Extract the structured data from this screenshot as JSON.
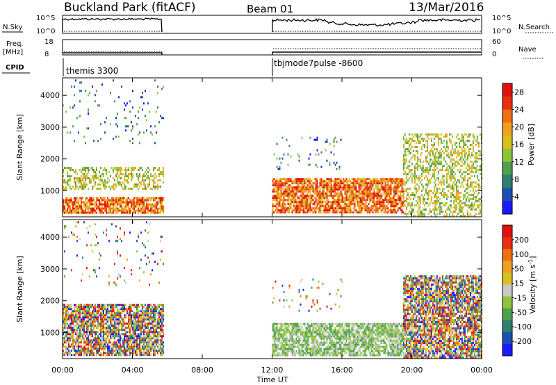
{
  "header": {
    "station": "Buckland Park (fitACF)",
    "beam": "Beam 01",
    "date": "13/Mar/2016"
  },
  "status_panels": {
    "left_labels": {
      "nsky": "N.Sky",
      "freq": "Freq.",
      "freq_unit": "[MHz]",
      "cpid": "CPID"
    },
    "right_labels": {
      "nsearch": "N.Search",
      "nave": "Nave"
    },
    "noise_ticks_left": [
      "10^5",
      "10^0"
    ],
    "noise_ticks_right": [
      "10^5",
      "10^0"
    ],
    "freq_ticks": [
      "18",
      "8"
    ],
    "nave_ticks": [
      "60",
      "0"
    ],
    "cpid_labels": [
      "themis 3300",
      "tbjmode7pulse -8600"
    ]
  },
  "chart_data": [
    {
      "type": "heatmap",
      "title": "",
      "xlabel": "Time UT",
      "ylabel": "Slant Range [km]",
      "x_tick_labels": [
        "00:00",
        "04:00",
        "08:00",
        "12:00",
        "16:00",
        "20:00",
        "00:00"
      ],
      "y_tick_labels": [
        "1000",
        "2000",
        "3000",
        "4000"
      ],
      "xlim_hours": [
        0,
        24
      ],
      "ylim_km": [
        180,
        4550
      ],
      "colorbar": {
        "label": "Power [dB]",
        "ticks": [
          "4",
          "8",
          "12",
          "16",
          "20",
          "24",
          "28"
        ],
        "range": [
          0,
          30
        ],
        "colors": [
          "#1a1aff",
          "#1d4fb0",
          "#2f7f6f",
          "#4fa04f",
          "#8fc43a",
          "#d8c020",
          "#f0a020",
          "#f07010",
          "#e83010",
          "#e01010"
        ]
      },
      "gaps_hours": [
        [
          5.75,
          12.0
        ]
      ],
      "echo_regions": [
        {
          "t": [
            0.0,
            5.75
          ],
          "r": [
            280,
            800
          ],
          "level": "strong"
        },
        {
          "t": [
            0.0,
            5.75
          ],
          "r": [
            1050,
            1750
          ],
          "level": "moderate"
        },
        {
          "t": [
            0.0,
            5.75
          ],
          "r": [
            2500,
            4500
          ],
          "level": "sparse"
        },
        {
          "t": [
            12.0,
            19.5
          ],
          "r": [
            300,
            1400
          ],
          "level": "strong"
        },
        {
          "t": [
            12.0,
            16.0
          ],
          "r": [
            1700,
            2700
          ],
          "level": "sparse"
        },
        {
          "t": [
            19.5,
            24.0
          ],
          "r": [
            200,
            2800
          ],
          "level": "moderate"
        }
      ]
    },
    {
      "type": "heatmap",
      "title": "",
      "xlabel": "Time UT",
      "ylabel": "Slant Range [km]",
      "x_tick_labels": [
        "00:00",
        "04:00",
        "08:00",
        "12:00",
        "16:00",
        "20:00",
        "00:00"
      ],
      "y_tick_labels": [
        "1000",
        "2000",
        "3000",
        "4000"
      ],
      "xlim_hours": [
        0,
        24
      ],
      "ylim_km": [
        180,
        4550
      ],
      "colorbar": {
        "label": "Velocity [m s-1]",
        "ticks": [
          "200",
          "100",
          "50",
          "15",
          "-15",
          "-50",
          "-100",
          "-200"
        ],
        "range": [
          -250,
          250
        ],
        "colors": [
          "#1a1aff",
          "#1d4fb0",
          "#2f7f6f",
          "#4fa04f",
          "#8fc43a",
          "#c8c8c8",
          "#d8c020",
          "#f0a020",
          "#f07010",
          "#e83010",
          "#e01010"
        ]
      },
      "gaps_hours": [
        [
          5.75,
          12.0
        ]
      ],
      "echo_regions": [
        {
          "t": [
            0.0,
            5.75
          ],
          "r": [
            280,
            1900
          ],
          "level": "mixed"
        },
        {
          "t": [
            0.0,
            5.75
          ],
          "r": [
            2500,
            4500
          ],
          "level": "sparse"
        },
        {
          "t": [
            12.0,
            19.5
          ],
          "r": [
            300,
            1300
          ],
          "level": "green"
        },
        {
          "t": [
            12.0,
            16.0
          ],
          "r": [
            1700,
            2700
          ],
          "level": "sparse"
        },
        {
          "t": [
            19.5,
            24.0
          ],
          "r": [
            200,
            2800
          ],
          "level": "mixed"
        }
      ]
    }
  ],
  "colors": {
    "frame": "#000000",
    "background": "#ffffff"
  }
}
